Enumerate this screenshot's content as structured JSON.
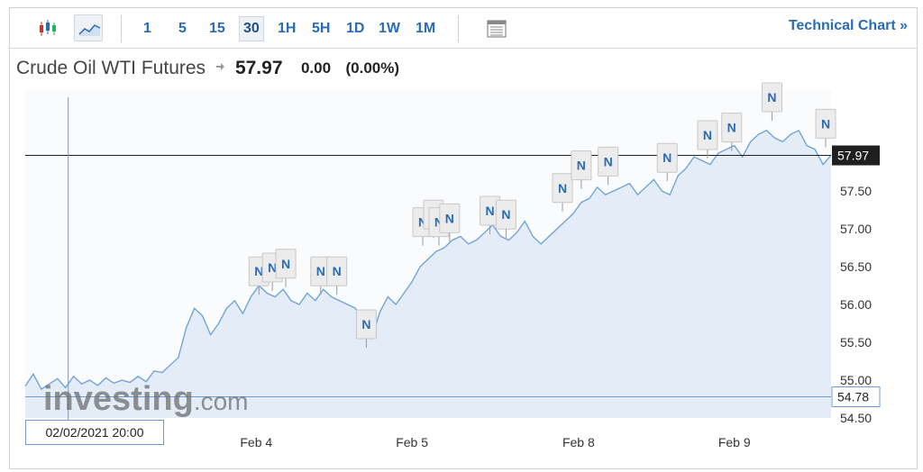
{
  "toolbar": {
    "chart_type_icons": [
      {
        "name": "candlestick-icon",
        "active": false
      },
      {
        "name": "area-line-icon",
        "active": true
      }
    ],
    "timeframes": [
      {
        "label": "1",
        "active": false
      },
      {
        "label": "5",
        "active": false
      },
      {
        "label": "15",
        "active": false
      },
      {
        "label": "30",
        "active": true
      },
      {
        "label": "1H",
        "active": false
      },
      {
        "label": "5H",
        "active": false
      },
      {
        "label": "1D",
        "active": false
      },
      {
        "label": "1W",
        "active": false
      },
      {
        "label": "1M",
        "active": false
      }
    ],
    "table_icon": "table-icon",
    "technical_chart_link": "Technical Chart »"
  },
  "instrument": {
    "name": "Crude Oil WTI Futures",
    "price": "57.97",
    "change": "0.00",
    "change_pct": "(0.00%)"
  },
  "crosshair": {
    "date_label": "02/02/2021 20:00",
    "price_label": "54.78"
  },
  "watermark": {
    "brand": "investing",
    "suffix": ".com"
  },
  "colors": {
    "line": "#6a9fd6",
    "area_fill": "#e4edf7",
    "link_blue": "#2a6bb5",
    "last_price_tag": "#1f1f1f",
    "crosshair": "#6e9bd1",
    "news_marker_text": "#2a6bb5"
  },
  "chart_data": {
    "type": "area",
    "title": "Crude Oil WTI Futures",
    "xlabel": "",
    "ylabel": "",
    "x_ticks": [
      "Feb 4",
      "Feb 5",
      "Feb 8",
      "Feb 9"
    ],
    "x_tick_positions": [
      8.6,
      14.4,
      20.6,
      26.4
    ],
    "y_ticks": [
      "54.50",
      "55.00",
      "55.50",
      "56.00",
      "56.50",
      "57.00",
      "57.50"
    ],
    "ylim": [
      54.5,
      58.1
    ],
    "xlim": [
      0,
      30
    ],
    "last_price": 57.97,
    "crosshair_price": 54.78,
    "crosshair_x": 1.6,
    "grid": false,
    "legend": "none",
    "x": [
      0,
      0.3,
      0.6,
      0.9,
      1.2,
      1.5,
      1.8,
      2.1,
      2.4,
      2.7,
      3.0,
      3.3,
      3.6,
      3.9,
      4.2,
      4.5,
      4.8,
      5.1,
      5.4,
      5.7,
      6.0,
      6.3,
      6.6,
      6.9,
      7.2,
      7.5,
      7.8,
      8.1,
      8.4,
      8.7,
      9.0,
      9.3,
      9.6,
      9.9,
      10.2,
      10.5,
      10.8,
      11.1,
      11.4,
      11.7,
      12.0,
      12.3,
      12.6,
      12.9,
      13.2,
      13.5,
      13.8,
      14.1,
      14.4,
      14.7,
      15.0,
      15.3,
      15.6,
      15.9,
      16.2,
      16.5,
      16.8,
      17.1,
      17.4,
      17.7,
      18.0,
      18.3,
      18.6,
      18.9,
      19.2,
      19.5,
      19.8,
      20.1,
      20.4,
      20.7,
      21.0,
      21.3,
      21.6,
      21.9,
      22.2,
      22.5,
      22.8,
      23.1,
      23.4,
      23.7,
      24.0,
      24.3,
      24.6,
      24.9,
      25.2,
      25.5,
      25.8,
      26.1,
      26.4,
      26.7,
      27.0,
      27.3,
      27.6,
      27.9,
      28.2,
      28.5,
      28.8,
      29.1,
      29.4,
      29.7,
      30.0
    ],
    "y": [
      54.92,
      55.08,
      54.88,
      54.95,
      55.02,
      54.9,
      55.05,
      54.95,
      55.0,
      54.93,
      55.03,
      54.96,
      55.0,
      54.97,
      55.05,
      54.98,
      55.12,
      55.1,
      55.2,
      55.3,
      55.7,
      55.95,
      55.85,
      55.6,
      55.75,
      55.95,
      56.05,
      55.88,
      56.1,
      56.25,
      56.15,
      56.1,
      56.2,
      56.05,
      56.0,
      56.15,
      56.05,
      56.2,
      56.1,
      56.05,
      56.0,
      55.95,
      55.7,
      55.55,
      55.9,
      56.1,
      56.0,
      56.15,
      56.3,
      56.5,
      56.6,
      56.7,
      56.75,
      56.85,
      56.9,
      56.8,
      56.85,
      56.95,
      57.05,
      56.9,
      56.85,
      56.95,
      57.1,
      56.9,
      56.8,
      56.9,
      57.0,
      57.1,
      57.2,
      57.35,
      57.4,
      57.55,
      57.45,
      57.5,
      57.55,
      57.6,
      57.45,
      57.55,
      57.65,
      57.5,
      57.45,
      57.7,
      57.8,
      57.95,
      57.9,
      57.85,
      58.0,
      58.05,
      58.1,
      57.95,
      58.15,
      58.25,
      58.3,
      58.2,
      58.15,
      58.25,
      58.3,
      58.1,
      58.05,
      57.85,
      57.97
    ],
    "annotations": [
      {
        "label": "N",
        "x": 8.7,
        "y": 56.2
      },
      {
        "label": "N",
        "x": 9.2,
        "y": 56.25
      },
      {
        "label": "N",
        "x": 9.7,
        "y": 56.3
      },
      {
        "label": "N",
        "x": 11.0,
        "y": 56.2
      },
      {
        "label": "N",
        "x": 11.6,
        "y": 56.2
      },
      {
        "label": "N",
        "x": 12.7,
        "y": 55.5
      },
      {
        "label": "N",
        "x": 14.8,
        "y": 56.85
      },
      {
        "label": "N",
        "x": 15.2,
        "y": 56.95
      },
      {
        "label": "N",
        "x": 15.4,
        "y": 56.85
      },
      {
        "label": "N",
        "x": 15.8,
        "y": 56.9
      },
      {
        "label": "N",
        "x": 17.3,
        "y": 57.0
      },
      {
        "label": "N",
        "x": 17.9,
        "y": 56.95
      },
      {
        "label": "N",
        "x": 20.0,
        "y": 57.3
      },
      {
        "label": "N",
        "x": 20.7,
        "y": 57.6
      },
      {
        "label": "N",
        "x": 21.7,
        "y": 57.65
      },
      {
        "label": "N",
        "x": 23.9,
        "y": 57.7
      },
      {
        "label": "N",
        "x": 25.4,
        "y": 58.0
      },
      {
        "label": "N",
        "x": 26.3,
        "y": 58.1
      },
      {
        "label": "N",
        "x": 27.8,
        "y": 58.5
      },
      {
        "label": "N",
        "x": 29.8,
        "y": 58.15
      }
    ]
  }
}
